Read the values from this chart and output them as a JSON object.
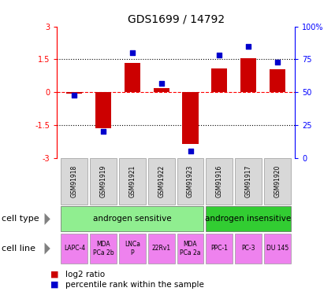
{
  "title": "GDS1699 / 14792",
  "samples": [
    "GSM91918",
    "GSM91919",
    "GSM91921",
    "GSM91922",
    "GSM91923",
    "GSM91916",
    "GSM91917",
    "GSM91920"
  ],
  "log2_ratio": [
    -0.05,
    -1.65,
    1.35,
    0.2,
    -2.35,
    1.1,
    1.55,
    1.05
  ],
  "percentile_rank": [
    48,
    20,
    80,
    57,
    5,
    78,
    85,
    73
  ],
  "cell_type_groups": [
    {
      "label": "androgen sensitive",
      "start": 0,
      "end": 5,
      "color": "#90ee90"
    },
    {
      "label": "androgen insensitive",
      "start": 5,
      "end": 8,
      "color": "#32cd32"
    }
  ],
  "cell_lines": [
    "LAPC-4",
    "MDA\nPCa 2b",
    "LNCa\nP",
    "22Rv1",
    "MDA\nPCa 2a",
    "PPC-1",
    "PC-3",
    "DU 145"
  ],
  "cell_line_color": "#ee82ee",
  "sample_box_color": "#d8d8d8",
  "bar_color": "#cc0000",
  "dot_color": "#0000cc",
  "ylim": [
    -3,
    3
  ],
  "y2lim": [
    0,
    100
  ],
  "yticks": [
    -3,
    -1.5,
    0,
    1.5,
    3
  ],
  "ytick_labels": [
    "-3",
    "-1.5",
    "0",
    "1.5",
    "3"
  ],
  "y2ticks": [
    0,
    25,
    50,
    75,
    100
  ],
  "y2tick_labels": [
    "0",
    "25",
    "50",
    "75",
    "100%"
  ],
  "hline_y": 0,
  "dotted_lines": [
    -1.5,
    1.5
  ],
  "legend_items": [
    "log2 ratio",
    "percentile rank within the sample"
  ],
  "cell_type_label": "cell type",
  "cell_line_label": "cell line"
}
